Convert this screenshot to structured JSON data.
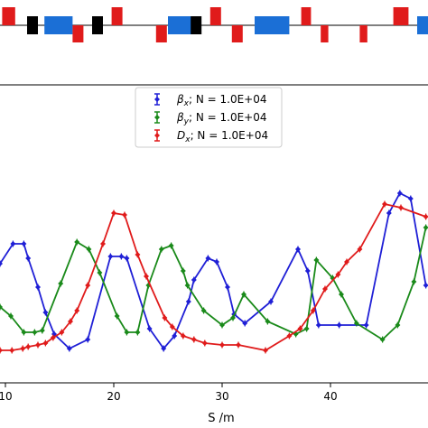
{
  "chart_data": {
    "type": "line",
    "xlabel": "S /m",
    "ylabel": "",
    "title": "",
    "xlim": [
      9.5,
      49
    ],
    "ylim": [
      0,
      1
    ],
    "x_ticks": [
      10,
      20,
      30,
      40
    ],
    "x_tick_labels": [
      "10",
      "20",
      "30",
      "40"
    ],
    "grid": false,
    "legend_position": "top-center",
    "legend": [
      {
        "symbol": "β",
        "sub": "x",
        "rest": "; N = 1.0E+04",
        "color": "#1f1fd6"
      },
      {
        "symbol": "β",
        "sub": "y",
        "rest": "; N = 1.0E+04",
        "color": "#1a8a1a"
      },
      {
        "symbol": "D",
        "sub": "x",
        "rest": "; N = 1.0E+04",
        "color": "#e01b1b"
      }
    ],
    "series": [
      {
        "color": "#1f1fd6",
        "x": [
          9.5,
          10.7,
          11.7,
          12.1,
          13.0,
          13.7,
          14.5,
          15.9,
          17.6,
          19.7,
          20.7,
          21.2,
          23.3,
          24.6,
          25.6,
          26.9,
          27.4,
          28.7,
          29.5,
          30.5,
          31.1,
          32.1,
          34.5,
          37.0,
          37.9,
          38.9,
          40.8,
          43.3,
          45.4,
          46.4,
          47.4,
          48.8
        ],
        "y": [
          0.52,
          0.63,
          0.63,
          0.55,
          0.39,
          0.25,
          0.13,
          0.05,
          0.1,
          0.56,
          0.56,
          0.55,
          0.16,
          0.05,
          0.12,
          0.31,
          0.43,
          0.55,
          0.53,
          0.39,
          0.24,
          0.19,
          0.31,
          0.6,
          0.48,
          0.18,
          0.18,
          0.18,
          0.8,
          0.91,
          0.88,
          0.4
        ]
      },
      {
        "color": "#1a8a1a",
        "x": [
          9.5,
          10.5,
          11.7,
          12.7,
          13.4,
          15.1,
          16.6,
          17.7,
          18.7,
          20.3,
          21.2,
          22.2,
          23.2,
          24.4,
          25.3,
          26.4,
          26.8,
          28.3,
          30.0,
          31.0,
          32.0,
          34.2,
          36.8,
          37.8,
          38.7,
          40.2,
          41.0,
          42.4,
          44.8,
          46.2,
          47.7,
          48.8
        ],
        "y": [
          0.28,
          0.23,
          0.14,
          0.14,
          0.15,
          0.41,
          0.64,
          0.6,
          0.47,
          0.23,
          0.14,
          0.14,
          0.4,
          0.6,
          0.62,
          0.48,
          0.4,
          0.26,
          0.18,
          0.22,
          0.35,
          0.2,
          0.13,
          0.16,
          0.54,
          0.44,
          0.35,
          0.19,
          0.1,
          0.18,
          0.42,
          0.72
        ]
      },
      {
        "color": "#e01b1b",
        "x": [
          9.5,
          10.6,
          11.6,
          12.1,
          13.0,
          13.7,
          14.4,
          15.2,
          16.0,
          16.6,
          17.6,
          19.0,
          20.0,
          21.0,
          22.2,
          23.0,
          24.7,
          25.4,
          26.4,
          27.4,
          28.4,
          30.0,
          31.5,
          34.0,
          36.2,
          37.2,
          38.4,
          39.5,
          40.7,
          41.5,
          42.7,
          45.0,
          46.5,
          48.8
        ],
        "y": [
          0.04,
          0.04,
          0.05,
          0.06,
          0.07,
          0.08,
          0.11,
          0.14,
          0.2,
          0.26,
          0.4,
          0.63,
          0.8,
          0.79,
          0.57,
          0.45,
          0.22,
          0.17,
          0.12,
          0.1,
          0.08,
          0.07,
          0.07,
          0.04,
          0.12,
          0.16,
          0.26,
          0.38,
          0.46,
          0.53,
          0.6,
          0.85,
          0.83,
          0.78
        ]
      }
    ],
    "lattice": {
      "elements": [
        {
          "kind": "quad",
          "color": "#e01b1b",
          "s": 9.7,
          "length": 1.2,
          "dir": "up"
        },
        {
          "kind": "bend",
          "color": "#000000",
          "s": 12.0,
          "length": 1.0,
          "dir": "both"
        },
        {
          "kind": "drift-box",
          "color": "#1b6fd6",
          "s": 13.6,
          "length": 2.6,
          "dir": "both"
        },
        {
          "kind": "quad",
          "color": "#e01b1b",
          "s": 16.2,
          "length": 1.0,
          "dir": "down"
        },
        {
          "kind": "bend",
          "color": "#000000",
          "s": 18.0,
          "length": 1.0,
          "dir": "both"
        },
        {
          "kind": "quad",
          "color": "#e01b1b",
          "s": 19.8,
          "length": 1.0,
          "dir": "up"
        },
        {
          "kind": "quad",
          "color": "#e01b1b",
          "s": 23.9,
          "length": 1.0,
          "dir": "down"
        },
        {
          "kind": "drift-box",
          "color": "#1b6fd6",
          "s": 25.0,
          "length": 2.6,
          "dir": "both"
        },
        {
          "kind": "bend",
          "color": "#000000",
          "s": 27.1,
          "length": 1.0,
          "dir": "both"
        },
        {
          "kind": "quad",
          "color": "#e01b1b",
          "s": 28.9,
          "length": 1.0,
          "dir": "up"
        },
        {
          "kind": "quad",
          "color": "#e01b1b",
          "s": 30.9,
          "length": 1.0,
          "dir": "down"
        },
        {
          "kind": "drift-box",
          "color": "#1b6fd6",
          "s": 33.0,
          "length": 3.2,
          "dir": "both"
        },
        {
          "kind": "quad",
          "color": "#e01b1b",
          "s": 37.3,
          "length": 0.9,
          "dir": "up"
        },
        {
          "kind": "quad",
          "color": "#e01b1b",
          "s": 39.1,
          "length": 0.7,
          "dir": "down"
        },
        {
          "kind": "quad",
          "color": "#e01b1b",
          "s": 42.7,
          "length": 0.7,
          "dir": "down"
        },
        {
          "kind": "quad",
          "color": "#e01b1b",
          "s": 45.8,
          "length": 1.4,
          "dir": "up"
        },
        {
          "kind": "drift-box",
          "color": "#1b6fd6",
          "s": 48.0,
          "length": 1.2,
          "dir": "both"
        }
      ]
    }
  }
}
